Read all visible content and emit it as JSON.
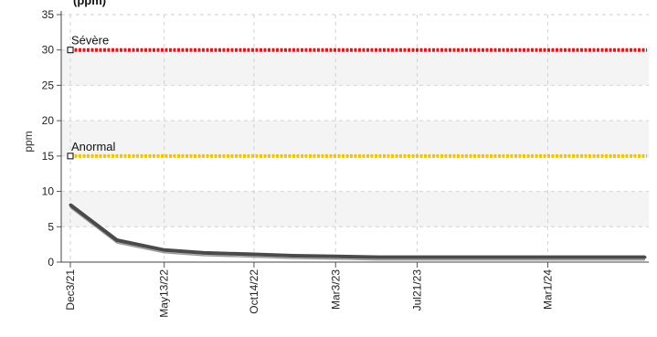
{
  "chart_data": {
    "type": "line",
    "title": "(ppm)",
    "xlabel": "",
    "ylabel": "ppm",
    "ylim": [
      0,
      35
    ],
    "yticks": [
      0,
      5,
      10,
      15,
      20,
      25,
      30,
      35
    ],
    "xlim": [
      "2021-12-03",
      "2024-08-15"
    ],
    "xticks": [
      {
        "date": "2021-12-03",
        "label": "Dec3/21"
      },
      {
        "date": "2022-05-13",
        "label": "May13/22"
      },
      {
        "date": "2022-10-14",
        "label": "Oct14/22"
      },
      {
        "date": "2023-03-03",
        "label": "Mar3/23"
      },
      {
        "date": "2023-07-21",
        "label": "Jul21/23"
      },
      {
        "date": "2024-03-01",
        "label": "Mar1/24"
      }
    ],
    "grid": true,
    "series": [
      {
        "color": "#4a4a4a",
        "points": [
          {
            "x": "2021-12-03",
            "y": 8.1
          },
          {
            "x": "2022-02-21",
            "y": 3.1
          },
          {
            "x": "2022-05-13",
            "y": 1.7
          },
          {
            "x": "2022-07-20",
            "y": 1.3
          },
          {
            "x": "2022-10-14",
            "y": 1.1
          },
          {
            "x": "2022-12-20",
            "y": 0.9
          },
          {
            "x": "2023-03-03",
            "y": 0.8
          },
          {
            "x": "2023-05-15",
            "y": 0.7
          },
          {
            "x": "2023-07-21",
            "y": 0.7
          },
          {
            "x": "2023-11-01",
            "y": 0.7
          },
          {
            "x": "2024-03-01",
            "y": 0.7
          },
          {
            "x": "2024-08-15",
            "y": 0.7
          }
        ]
      }
    ],
    "thresholds": [
      {
        "label": "Sévère",
        "value": 30,
        "color": "#e8141a"
      },
      {
        "label": "Anormal",
        "value": 15,
        "color": "#f5c400"
      }
    ],
    "bands": [
      {
        "from": 25,
        "to": 30,
        "color": "#f4f4f4"
      },
      {
        "from": 15,
        "to": 20,
        "color": "#f4f4f4"
      },
      {
        "from": 5,
        "to": 10,
        "color": "#f4f4f4"
      }
    ]
  }
}
